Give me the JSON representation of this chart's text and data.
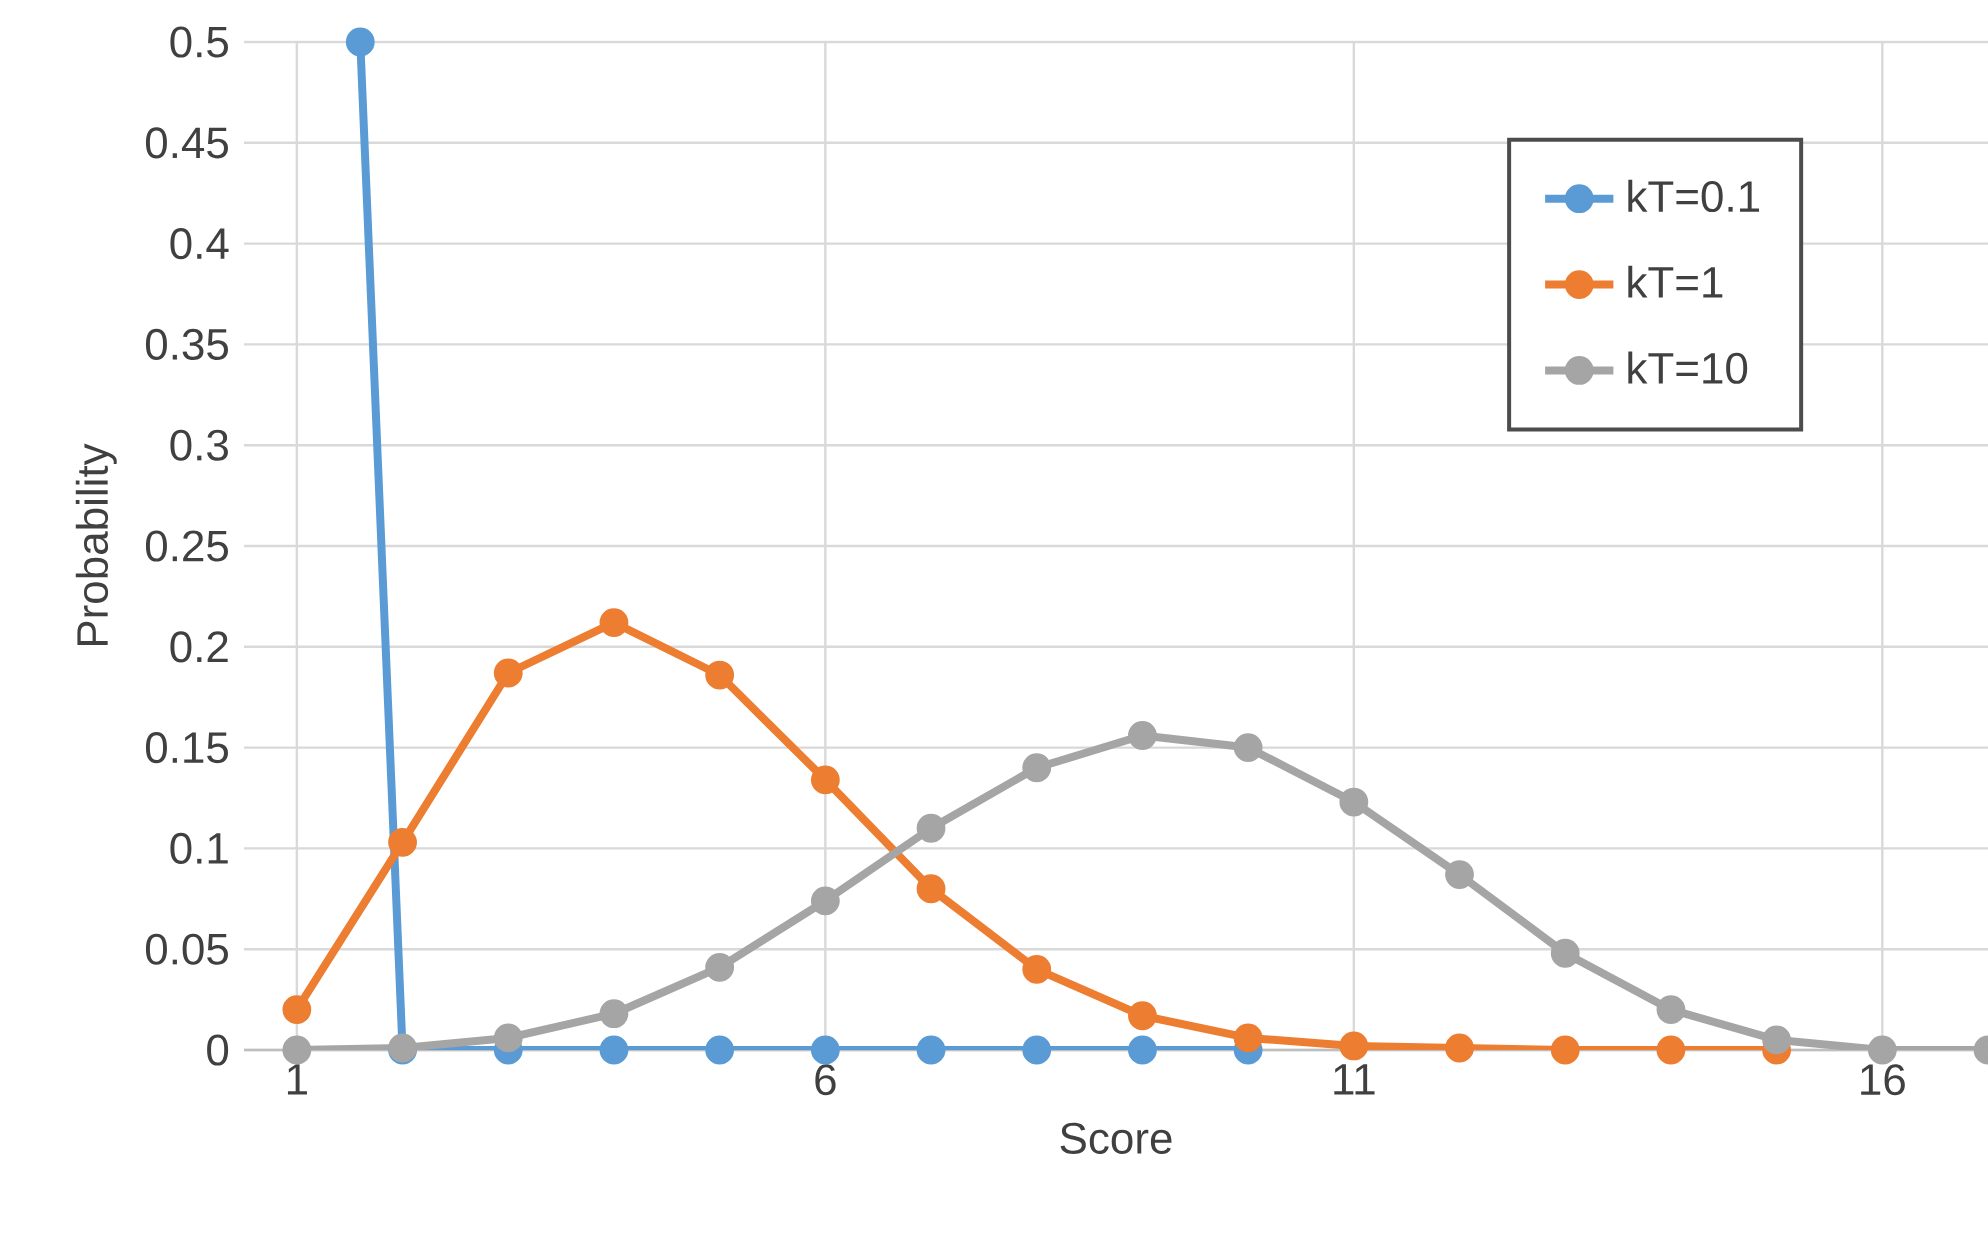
{
  "chart_data": {
    "type": "line",
    "xlabel": "Score",
    "ylabel": "Probability",
    "x": [
      1,
      2,
      3,
      4,
      5,
      6,
      7,
      8,
      9,
      10,
      11,
      12,
      13,
      14,
      15,
      16,
      17
    ],
    "xlim": [
      0.5,
      17
    ],
    "xticks": [
      1,
      6,
      11,
      16
    ],
    "ylim": [
      0,
      0.5
    ],
    "yticks": [
      0,
      0.05,
      0.1,
      0.15,
      0.2,
      0.25,
      0.3,
      0.35,
      0.4,
      0.45,
      0.5
    ],
    "grid": true,
    "legend": "top right",
    "marker": "circle",
    "line_style": "solid",
    "series": [
      {
        "name": "kT=0.1",
        "color": "#5b9bd5",
        "x": [
          1.6,
          2,
          3,
          4,
          5,
          6,
          7,
          8,
          9,
          10
        ],
        "values": [
          0.5,
          0,
          0,
          0,
          0,
          0,
          0,
          0,
          0,
          0
        ]
      },
      {
        "name": "kT=1",
        "color": "#ed7d31",
        "values": [
          0.02,
          0.103,
          0.187,
          0.212,
          0.186,
          0.134,
          0.08,
          0.04,
          0.017,
          0.006,
          0.002,
          0.001,
          0,
          0,
          0,
          null,
          null
        ]
      },
      {
        "name": "kT=10",
        "color": "#a5a5a5",
        "values": [
          0,
          0.001,
          0.006,
          0.018,
          0.041,
          0.074,
          0.11,
          0.14,
          0.156,
          0.15,
          0.123,
          0.087,
          0.048,
          0.02,
          0.005,
          0,
          0
        ]
      }
    ]
  }
}
